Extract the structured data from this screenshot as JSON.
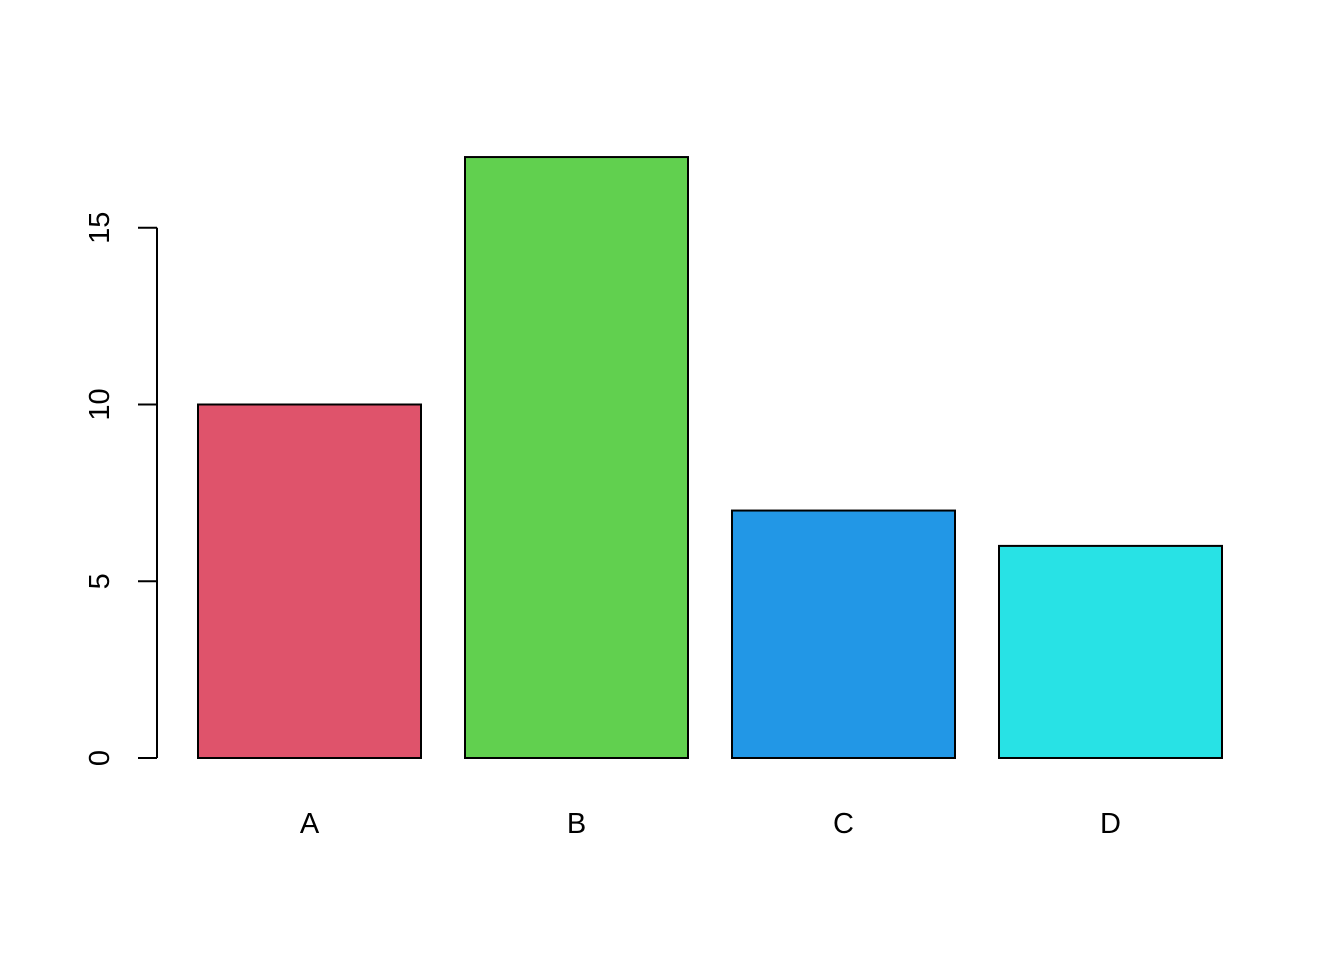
{
  "chart_data": {
    "type": "bar",
    "title": "",
    "xlabel": "",
    "ylabel": "",
    "categories": [
      "A",
      "B",
      "C",
      "D"
    ],
    "values": [
      10,
      17,
      7,
      6
    ],
    "colors": [
      "#DF536B",
      "#61D04F",
      "#2297E6",
      "#28E2E5"
    ],
    "bar_border_color": "#000000",
    "ylim": [
      0,
      17
    ],
    "y_ticks": [
      0,
      5,
      10,
      15
    ],
    "y_tick_labels": [
      "0",
      "5",
      "10",
      "15"
    ],
    "grid": false,
    "legend": "none"
  }
}
